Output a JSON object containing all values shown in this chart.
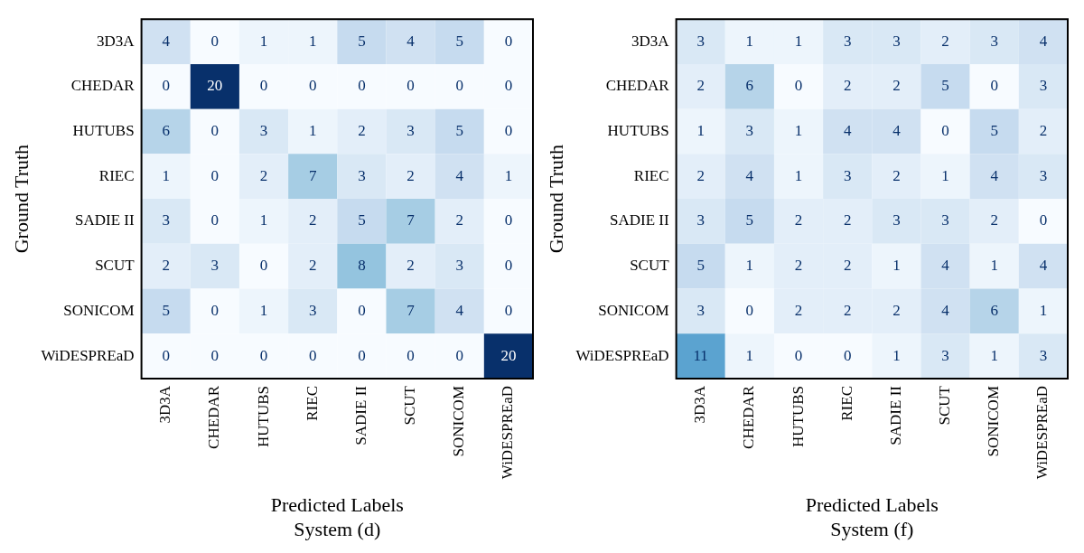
{
  "chart_data": [
    {
      "type": "heatmap",
      "xlabel": "Predicted Labels\nSystem (d)",
      "ylabel": "Ground Truth",
      "categories": [
        "3D3A",
        "CHEDAR",
        "HUTUBS",
        "RIEC",
        "SADIE II",
        "SCUT",
        "SONICOM",
        "WiDESPREaD"
      ],
      "y_categories": [
        "3D3A",
        "CHEDAR",
        "HUTUBS",
        "RIEC",
        "SADIE II",
        "SCUT",
        "SONICOM",
        "WiDESPREaD"
      ],
      "cells": [
        [
          4,
          0,
          1,
          1,
          5,
          4,
          5,
          0
        ],
        [
          0,
          20,
          0,
          0,
          0,
          0,
          0,
          0
        ],
        [
          6,
          0,
          3,
          1,
          2,
          3,
          5,
          0
        ],
        [
          1,
          0,
          2,
          7,
          3,
          2,
          4,
          1
        ],
        [
          3,
          0,
          1,
          2,
          5,
          7,
          2,
          0
        ],
        [
          2,
          3,
          0,
          2,
          8,
          2,
          3,
          0
        ],
        [
          5,
          0,
          1,
          3,
          0,
          7,
          4,
          0
        ],
        [
          0,
          0,
          0,
          0,
          0,
          0,
          0,
          20
        ]
      ],
      "data_labels": true
    },
    {
      "type": "heatmap",
      "xlabel": "Predicted Labels\nSystem (f)",
      "ylabel": "Ground Truth",
      "categories": [
        "3D3A",
        "CHEDAR",
        "HUTUBS",
        "RIEC",
        "SADIE II",
        "SCUT",
        "SONICOM",
        "WiDESPREaD"
      ],
      "y_categories": [
        "3D3A",
        "CHEDAR",
        "HUTUBS",
        "RIEC",
        "SADIE II",
        "SCUT",
        "SONICOM",
        "WiDESPREaD"
      ],
      "cells": [
        [
          3,
          1,
          1,
          3,
          3,
          2,
          3,
          4
        ],
        [
          2,
          6,
          0,
          2,
          2,
          5,
          0,
          3
        ],
        [
          1,
          3,
          1,
          4,
          4,
          0,
          5,
          2
        ],
        [
          2,
          4,
          1,
          3,
          2,
          1,
          4,
          3
        ],
        [
          3,
          5,
          2,
          2,
          3,
          3,
          2,
          0
        ],
        [
          5,
          1,
          2,
          2,
          1,
          4,
          1,
          4
        ],
        [
          3,
          0,
          2,
          2,
          2,
          4,
          6,
          1
        ],
        [
          11,
          1,
          0,
          0,
          1,
          3,
          1,
          3
        ]
      ],
      "data_labels": true
    }
  ]
}
